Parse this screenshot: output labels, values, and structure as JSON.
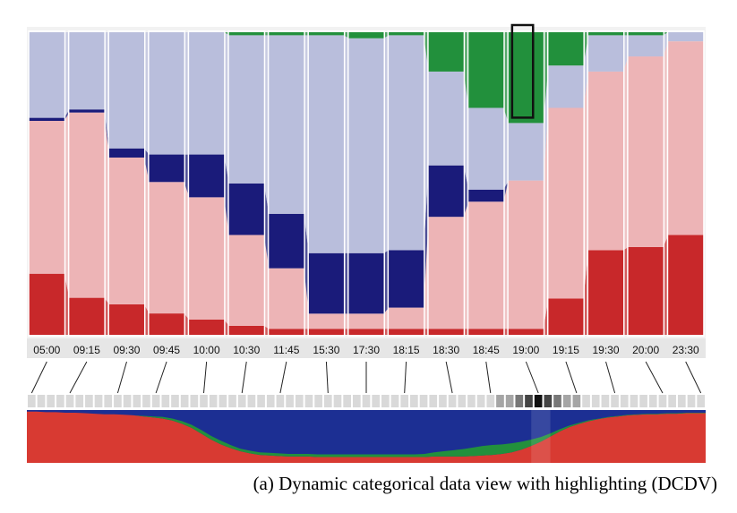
{
  "chart_data": {
    "type": "area",
    "title": "",
    "caption": "(a)  Dynamic categorical data view with highlighting (DCDV)",
    "categories": [
      "05:00",
      "09:15",
      "09:30",
      "09:45",
      "10:00",
      "10:30",
      "11:45",
      "15:30",
      "17:30",
      "18:15",
      "18:30",
      "18:45",
      "19:00",
      "19:15",
      "19:30",
      "20:00",
      "23:30"
    ],
    "ylim": [
      0,
      1
    ],
    "highlighted_category": "19:00",
    "series": [
      {
        "color": "#c8282a",
        "values": [
          0.2,
          0.12,
          0.1,
          0.07,
          0.05,
          0.03,
          0.02,
          0.02,
          0.02,
          0.02,
          0.02,
          0.02,
          0.02,
          0.12,
          0.28,
          0.29,
          0.33
        ]
      },
      {
        "color": "#edb4b6",
        "values": [
          0.5,
          0.6,
          0.48,
          0.43,
          0.4,
          0.3,
          0.2,
          0.05,
          0.05,
          0.07,
          0.37,
          0.42,
          0.49,
          0.63,
          0.59,
          0.63,
          0.64
        ]
      },
      {
        "color": "#1a1b7a",
        "values": [
          0.01,
          0.01,
          0.03,
          0.09,
          0.14,
          0.17,
          0.18,
          0.2,
          0.2,
          0.19,
          0.17,
          0.04,
          0.0,
          0.0,
          0.0,
          0.0,
          0.0
        ]
      },
      {
        "color": "#b9bedc",
        "values": [
          0.28,
          0.25,
          0.38,
          0.4,
          0.4,
          0.49,
          0.59,
          0.72,
          0.71,
          0.71,
          0.31,
          0.27,
          0.19,
          0.14,
          0.12,
          0.07,
          0.03
        ]
      },
      {
        "color": "#22903c",
        "values": [
          0.0,
          0.0,
          0.0,
          0.0,
          0.0,
          0.01,
          0.01,
          0.01,
          0.02,
          0.01,
          0.13,
          0.25,
          0.3,
          0.11,
          0.01,
          0.01,
          0.0
        ]
      }
    ],
    "overview": {
      "samples": 71,
      "red_fraction": [
        0.97,
        0.97,
        0.96,
        0.96,
        0.95,
        0.95,
        0.94,
        0.93,
        0.92,
        0.92,
        0.91,
        0.9,
        0.88,
        0.86,
        0.84,
        0.8,
        0.74,
        0.66,
        0.55,
        0.44,
        0.35,
        0.28,
        0.22,
        0.18,
        0.15,
        0.14,
        0.13,
        0.12,
        0.12,
        0.12,
        0.11,
        0.11,
        0.11,
        0.11,
        0.11,
        0.11,
        0.11,
        0.11,
        0.11,
        0.11,
        0.11,
        0.11,
        0.12,
        0.12,
        0.12,
        0.12,
        0.13,
        0.14,
        0.15,
        0.17,
        0.2,
        0.25,
        0.32,
        0.4,
        0.5,
        0.6,
        0.68,
        0.74,
        0.79,
        0.83,
        0.86,
        0.88,
        0.9,
        0.91,
        0.92,
        0.92,
        0.93,
        0.93,
        0.94,
        0.94,
        0.94
      ],
      "green_fraction": [
        0.0,
        0.0,
        0.0,
        0.0,
        0.0,
        0.0,
        0.0,
        0.0,
        0.0,
        0.0,
        0.0,
        0.0,
        0.01,
        0.02,
        0.03,
        0.04,
        0.05,
        0.06,
        0.07,
        0.07,
        0.07,
        0.06,
        0.05,
        0.05,
        0.05,
        0.05,
        0.05,
        0.05,
        0.05,
        0.05,
        0.05,
        0.05,
        0.05,
        0.05,
        0.05,
        0.05,
        0.05,
        0.05,
        0.05,
        0.05,
        0.05,
        0.06,
        0.08,
        0.1,
        0.12,
        0.14,
        0.16,
        0.18,
        0.19,
        0.18,
        0.17,
        0.15,
        0.12,
        0.09,
        0.06,
        0.04,
        0.03,
        0.02,
        0.02,
        0.01,
        0.01,
        0.01,
        0.01,
        0.01,
        0.01,
        0.01,
        0.01,
        0.01,
        0.01,
        0.01,
        0.01
      ],
      "red_color": "#d83a32",
      "blue_color": "#1c2f93",
      "green_color": "#22903c"
    },
    "grid": false,
    "legend": "none"
  }
}
